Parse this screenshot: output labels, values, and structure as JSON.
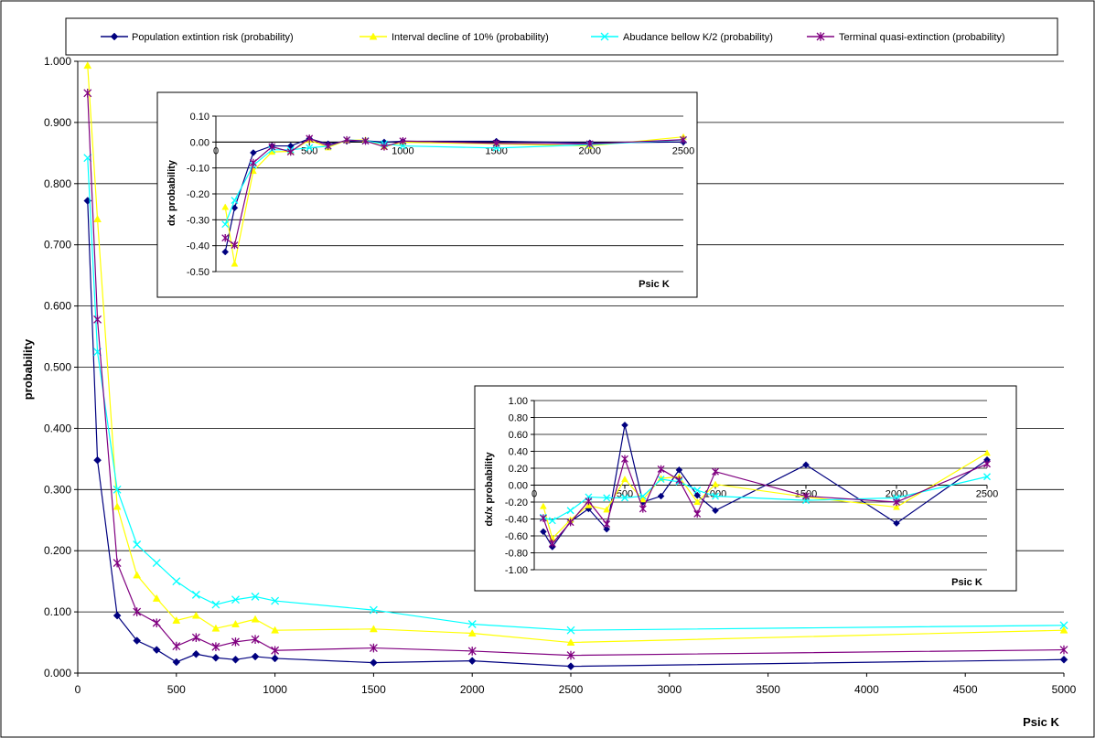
{
  "chart_data": [
    {
      "type": "line",
      "title": "",
      "xlabel": "Psic K",
      "ylabel": "probability",
      "xlim": [
        0,
        5000
      ],
      "ylim": [
        0,
        1.0
      ],
      "x_ticks": [
        "0",
        "500",
        "1000",
        "1500",
        "2000",
        "2500",
        "3000",
        "3500",
        "4000",
        "4500",
        "5000"
      ],
      "y_ticks": [
        "0.000",
        "0.100",
        "0.200",
        "0.300",
        "0.400",
        "0.500",
        "0.600",
        "0.700",
        "0.800",
        "0.900",
        "1.000"
      ],
      "grid": "horizontal",
      "legend_position": "top",
      "x": [
        50,
        100,
        200,
        300,
        400,
        500,
        600,
        700,
        800,
        900,
        1000,
        1500,
        2000,
        2500,
        5000
      ],
      "series": [
        {
          "name": "Population extintion risk (probability)",
          "color": "#00007F",
          "marker": "diamond",
          "values": [
            0.772,
            0.348,
            0.094,
            0.053,
            0.038,
            0.018,
            0.031,
            0.025,
            0.022,
            0.027,
            0.024,
            0.017,
            0.02,
            0.011,
            0.022
          ]
        },
        {
          "name": "Interval decline of 10% (probability)",
          "color": "#FFFF00",
          "marker": "triangle",
          "values": [
            0.993,
            0.742,
            0.272,
            0.16,
            0.122,
            0.086,
            0.094,
            0.073,
            0.08,
            0.088,
            0.07,
            0.072,
            0.065,
            0.05,
            0.07
          ]
        },
        {
          "name": "Abudance bellow K/2 (probability)",
          "color": "#00FFFF",
          "marker": "x",
          "values": [
            0.842,
            0.525,
            0.3,
            0.21,
            0.18,
            0.15,
            0.128,
            0.112,
            0.12,
            0.125,
            0.118,
            0.103,
            0.08,
            0.07,
            0.078
          ]
        },
        {
          "name": "Terminal quasi-extinction (probability)",
          "color": "#800080",
          "marker": "star",
          "values": [
            0.948,
            0.578,
            0.18,
            0.1,
            0.082,
            0.044,
            0.058,
            0.043,
            0.051,
            0.055,
            0.037,
            0.041,
            0.036,
            0.029,
            0.038
          ]
        }
      ]
    },
    {
      "type": "line",
      "title": "",
      "xlabel": "Psic K",
      "ylabel": "dx probability",
      "xlim": [
        0,
        2500
      ],
      "ylim": [
        -0.5,
        0.1
      ],
      "x_ticks": [
        "0",
        "500",
        "1000",
        "1500",
        "2000",
        "2500"
      ],
      "y_ticks": [
        "-0.50",
        "-0.40",
        "-0.30",
        "-0.20",
        "-0.10",
        "0.00",
        "0.10"
      ],
      "grid": "horizontal",
      "x": [
        50,
        100,
        200,
        300,
        400,
        500,
        600,
        700,
        800,
        900,
        1000,
        1500,
        2000,
        2500
      ],
      "series": [
        {
          "color": "#00007F",
          "marker": "diamond",
          "values": [
            -0.424,
            -0.254,
            -0.041,
            -0.015,
            -0.015,
            0.013,
            -0.007,
            0.003,
            0.005,
            0.0,
            0.003,
            0.003,
            -0.003,
            0.0
          ]
        },
        {
          "color": "#FFFF00",
          "marker": "triangle",
          "values": [
            -0.251,
            -0.47,
            -0.112,
            -0.038,
            -0.036,
            0.008,
            -0.021,
            0.007,
            0.008,
            -0.018,
            -0.001,
            -0.007,
            -0.015,
            0.02
          ]
        },
        {
          "color": "#00FFFF",
          "marker": "x",
          "values": [
            -0.317,
            -0.225,
            -0.09,
            -0.03,
            -0.03,
            -0.022,
            -0.016,
            0.008,
            0.005,
            -0.007,
            -0.015,
            -0.023,
            -0.01,
            0.008
          ]
        },
        {
          "color": "#800080",
          "marker": "star",
          "values": [
            -0.37,
            -0.398,
            -0.08,
            -0.018,
            -0.038,
            0.014,
            -0.015,
            0.008,
            0.004,
            -0.018,
            0.004,
            -0.005,
            -0.007,
            0.009
          ]
        }
      ]
    },
    {
      "type": "line",
      "title": "",
      "xlabel": "Psic K",
      "ylabel": "dx/x probability",
      "xlim": [
        0,
        2500
      ],
      "ylim": [
        -1.0,
        1.0
      ],
      "x_ticks": [
        "0",
        "500",
        "1000",
        "1500",
        "2000",
        "2500"
      ],
      "y_ticks": [
        "-1.00",
        "-0.80",
        "-0.60",
        "-0.40",
        "-0.20",
        "0.00",
        "0.20",
        "0.40",
        "0.60",
        "0.80",
        "1.00"
      ],
      "grid": "horizontal",
      "x": [
        50,
        100,
        200,
        300,
        400,
        500,
        600,
        700,
        800,
        900,
        1000,
        1500,
        2000,
        2500
      ],
      "series": [
        {
          "color": "#00007F",
          "marker": "diamond",
          "values": [
            -0.55,
            -0.73,
            -0.43,
            -0.28,
            -0.52,
            0.71,
            -0.2,
            -0.13,
            0.18,
            -0.12,
            -0.3,
            0.24,
            -0.45,
            0.3
          ]
        },
        {
          "color": "#FFFF00",
          "marker": "triangle",
          "values": [
            -0.25,
            -0.63,
            -0.41,
            -0.24,
            -0.29,
            0.07,
            -0.17,
            0.08,
            0.1,
            -0.2,
            0.01,
            -0.14,
            -0.26,
            0.38
          ]
        },
        {
          "color": "#00FFFF",
          "marker": "x",
          "values": [
            -0.38,
            -0.42,
            -0.3,
            -0.14,
            -0.15,
            -0.15,
            -0.13,
            0.07,
            0.04,
            -0.06,
            -0.13,
            -0.18,
            -0.15,
            0.1
          ]
        },
        {
          "color": "#800080",
          "marker": "star",
          "values": [
            -0.39,
            -0.69,
            -0.44,
            -0.19,
            -0.46,
            0.31,
            -0.28,
            0.19,
            0.06,
            -0.34,
            0.16,
            -0.13,
            -0.2,
            0.25
          ]
        }
      ]
    }
  ]
}
